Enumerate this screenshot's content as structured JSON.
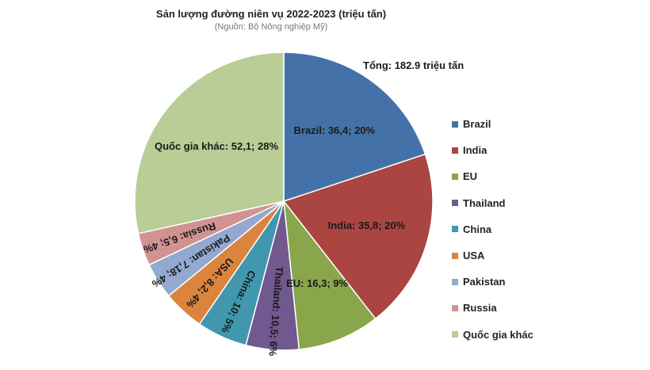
{
  "chart_data": {
    "type": "pie",
    "title": "Sản lượng đường niên vụ 2022-2023 (triệu tấn)",
    "subtitle": "(Nguồn: Bộ Nông nghiệp Mỹ)",
    "total_label": "Tổng: 182.9 triệu tấn",
    "slices": [
      {
        "name": "Brazil",
        "value": 36.4,
        "percent": 20,
        "color": "#4472a8",
        "label": "Brazil: 36,4; 20%"
      },
      {
        "name": "India",
        "value": 35.8,
        "percent": 20,
        "color": "#aa4542",
        "label": "India: 35,8; 20%"
      },
      {
        "name": "EU",
        "value": 16.3,
        "percent": 9,
        "color": "#89a64a",
        "label": "EU: 16,3; 9%"
      },
      {
        "name": "Thailand",
        "value": 10.5,
        "percent": 6,
        "color": "#71588f",
        "label": "Thailand: 10,5; 6%"
      },
      {
        "name": "China",
        "value": 10,
        "percent": 5,
        "color": "#4198ae",
        "label": "China: 10; 5%"
      },
      {
        "name": "USA",
        "value": 8.2,
        "percent": 4,
        "color": "#db843d",
        "label": "USA: 8,2; 4%"
      },
      {
        "name": "Pakistan",
        "value": 7.18,
        "percent": 4,
        "color": "#93a9cf",
        "label": "Pakistan: 7,18; 4%"
      },
      {
        "name": "Russia",
        "value": 6.5,
        "percent": 4,
        "color": "#d19392",
        "label": "Russia: 6,5; 4%"
      },
      {
        "name": "Quốc gia khác",
        "value": 52.1,
        "percent": 28,
        "color": "#b9cd96",
        "label": "Quốc gia khác: 52,1; 28%"
      }
    ],
    "legend_position": "right"
  }
}
